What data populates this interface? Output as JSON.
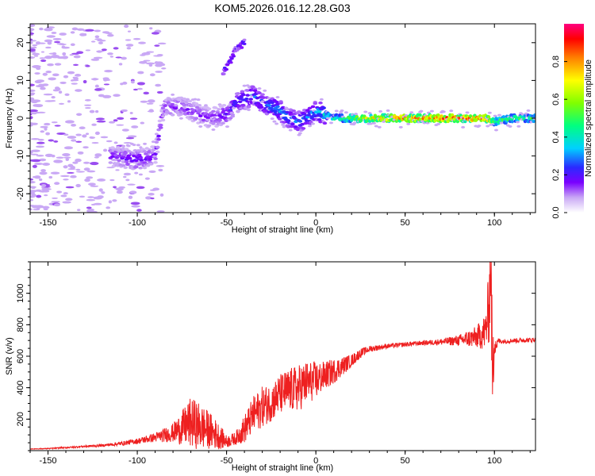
{
  "chart_data": [
    {
      "type": "heatmap",
      "title": "KOM5.2026.016.12.28.G03",
      "xlabel": "Height of straight line (km)",
      "ylabel": "Frequency (Hz)",
      "xlim": [
        -160,
        123
      ],
      "ylim": [
        -25,
        25
      ],
      "xticks": [
        -150,
        -100,
        -50,
        0,
        50,
        100
      ],
      "yticks": [
        -20,
        -10,
        0,
        10,
        20
      ],
      "colorbar": {
        "label": "Normalized spectral amplitude",
        "range": [
          0,
          1
        ],
        "ticks": [
          0.0,
          0.2,
          0.4,
          0.6,
          0.8
        ]
      },
      "ridge": {
        "x": [
          -115,
          -100,
          -90,
          -85,
          -75,
          -60,
          -50,
          -45,
          -35,
          -30,
          -20,
          -15,
          -10,
          -5,
          0,
          10,
          30,
          50,
          80,
          95,
          100,
          110,
          123
        ],
        "y": [
          -10,
          -11,
          -10,
          3,
          3,
          0,
          1,
          4,
          6,
          4,
          2,
          0,
          -1,
          0,
          2,
          0,
          0,
          0,
          0,
          0,
          -1,
          0,
          0
        ],
        "amplitude": [
          0.2,
          0.25,
          0.2,
          0.2,
          0.2,
          0.2,
          0.25,
          0.3,
          0.35,
          0.35,
          0.4,
          0.35,
          0.35,
          0.35,
          0.4,
          0.5,
          0.75,
          0.85,
          0.9,
          0.9,
          0.6,
          0.55,
          0.55
        ]
      },
      "upper_branch": {
        "x": [
          -52,
          -48,
          -45,
          -40
        ],
        "y": [
          12,
          15,
          18,
          20
        ]
      }
    },
    {
      "type": "line",
      "xlabel": "Height of straight line (km)",
      "ylabel": "SNR (v/v)",
      "xlim": [
        -160,
        123
      ],
      "ylim": [
        0,
        1200
      ],
      "xticks": [
        -150,
        -100,
        -50,
        0,
        50,
        100
      ],
      "yticks": [
        200,
        400,
        600,
        800,
        1000
      ],
      "series": [
        {
          "name": "SNR",
          "color": "#ee2020",
          "x": [
            -160,
            -150,
            -140,
            -130,
            -120,
            -110,
            -100,
            -90,
            -80,
            -75,
            -70,
            -65,
            -60,
            -55,
            -50,
            -45,
            -40,
            -35,
            -30,
            -25,
            -20,
            -15,
            -10,
            -5,
            0,
            5,
            10,
            15,
            20,
            25,
            30,
            40,
            50,
            60,
            70,
            80,
            90,
            95,
            97,
            98,
            99,
            100,
            101,
            102,
            105,
            110,
            123
          ],
          "y": [
            10,
            12,
            18,
            25,
            30,
            40,
            55,
            75,
            95,
            110,
            130,
            110,
            95,
            70,
            45,
            65,
            110,
            190,
            240,
            270,
            320,
            340,
            350,
            390,
            410,
            450,
            480,
            520,
            560,
            610,
            640,
            660,
            670,
            680,
            685,
            690,
            700,
            720,
            850,
            1100,
            300,
            700,
            650,
            690,
            690,
            695,
            700
          ],
          "noise": [
            2,
            3,
            4,
            6,
            8,
            12,
            18,
            30,
            60,
            110,
            160,
            150,
            120,
            90,
            40,
            40,
            90,
            120,
            130,
            120,
            130,
            140,
            150,
            140,
            120,
            90,
            80,
            60,
            40,
            30,
            20,
            15,
            15,
            15,
            20,
            35,
            70,
            120,
            250,
            300,
            300,
            150,
            40,
            20,
            15,
            15,
            15
          ]
        }
      ]
    }
  ],
  "colors": {
    "colormap": [
      "#ffffff",
      "#c9a8f5",
      "#7a00ff",
      "#2a2aff",
      "#00d0ff",
      "#00ff80",
      "#80ff00",
      "#ffff00",
      "#ff8000",
      "#ff0000",
      "#ff0080"
    ],
    "snr_line": "#ee2020"
  }
}
